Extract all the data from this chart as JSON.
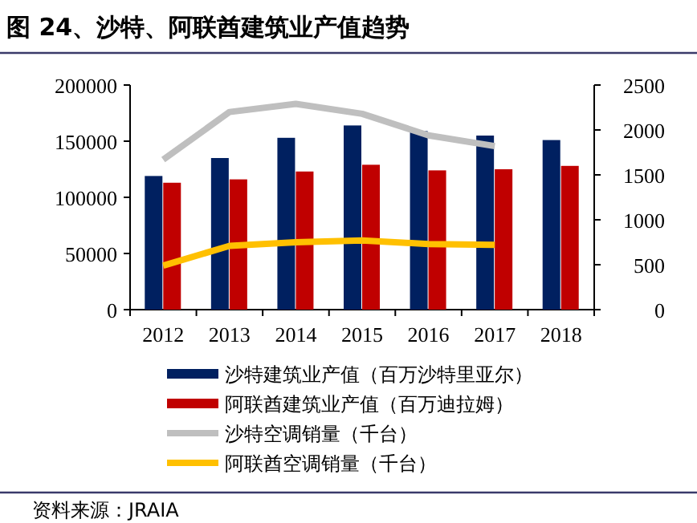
{
  "chart_data": {
    "type": "bar",
    "title": "图 24、沙特、阿联酋建筑业产值趋势",
    "categories": [
      "2012",
      "2013",
      "2014",
      "2015",
      "2016",
      "2017",
      "2018"
    ],
    "series": [
      {
        "name": "沙特建筑业产值（百万沙特里亚尔）",
        "color": "#002060",
        "values": [
          119000,
          135000,
          153000,
          164000,
          159000,
          155000,
          151000
        ]
      },
      {
        "name": "阿联酋建筑业产值（百万迪拉姆）",
        "color": "#c00000",
        "values": [
          113000,
          116000,
          123000,
          129000,
          124000,
          125000,
          128000
        ]
      },
      {
        "name": "沙特空调销量（千台）",
        "type": "line",
        "axis": "y2",
        "color": "#bfbfbf",
        "values": [
          1670,
          2200,
          2290,
          2180,
          1940,
          1820,
          null
        ]
      },
      {
        "name": "阿联酋空调销量（千台）",
        "type": "line",
        "axis": "y2",
        "color": "#ffc000",
        "values": [
          490,
          710,
          750,
          770,
          730,
          720,
          null
        ]
      }
    ],
    "ylim": [
      0,
      200000
    ],
    "yticks": [
      0,
      50000,
      100000,
      150000,
      200000
    ],
    "y2lim": [
      0,
      2500
    ],
    "y2ticks": [
      0,
      500,
      1000,
      1500,
      2000,
      2500
    ],
    "grid": false,
    "legend": "bottom",
    "annotations": [
      "资料来源：JRAIA"
    ]
  }
}
